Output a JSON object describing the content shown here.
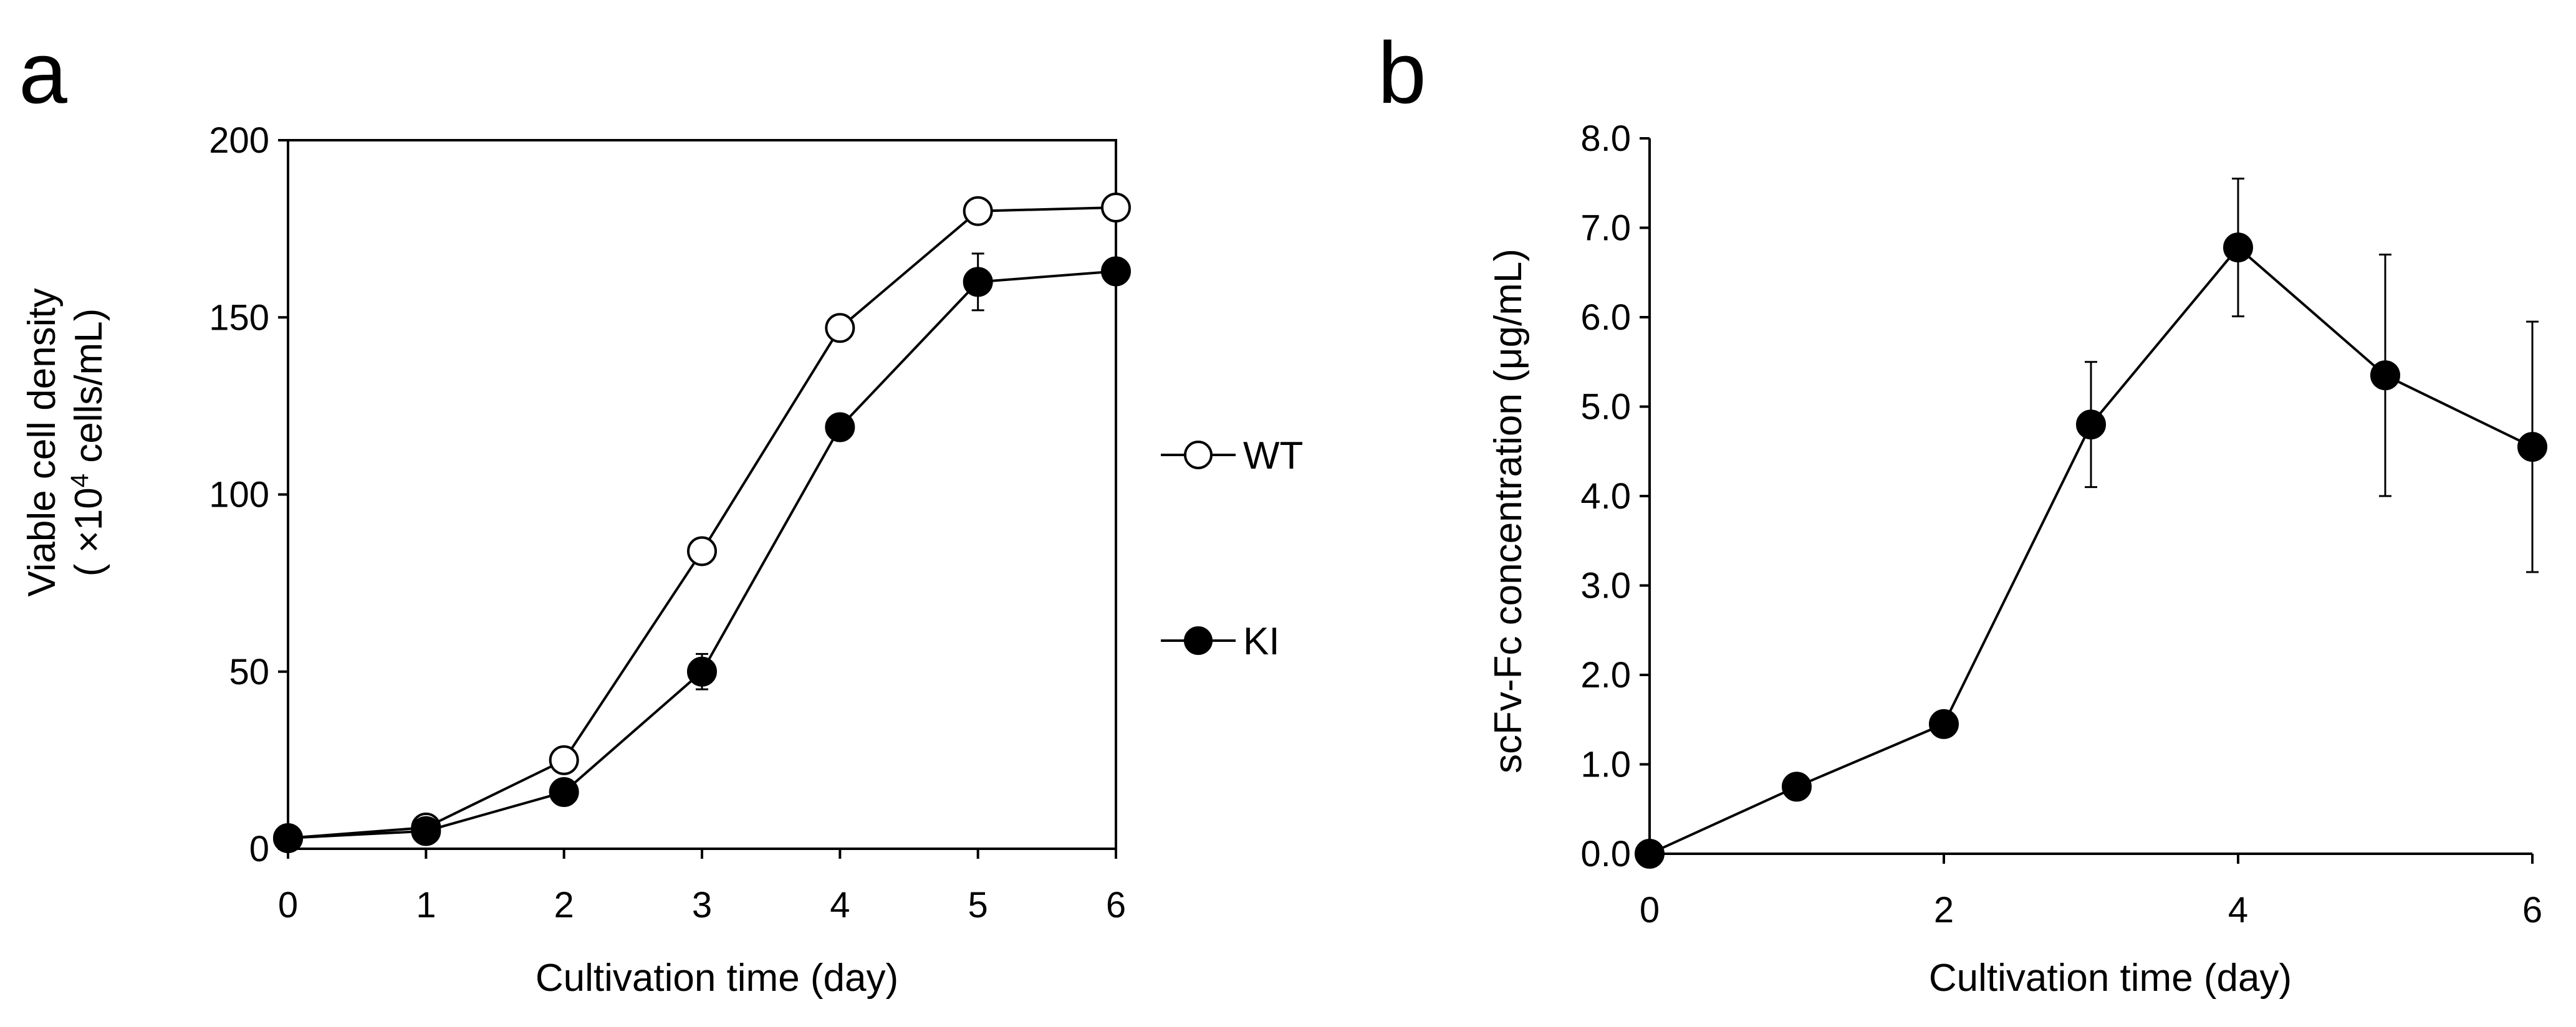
{
  "chart_data": [
    {
      "panel": "a",
      "type": "line",
      "xlabel": "Cultivation time (day)",
      "ylabel_line1": "Viable cell density",
      "ylabel_line2_prefix": "( ×10",
      "ylabel_line2_sup": "4",
      "ylabel_line2_suffix": " cells/mL)",
      "xlim": [
        0,
        6
      ],
      "ylim": [
        0,
        200
      ],
      "xticks": [
        0,
        1,
        2,
        3,
        4,
        5,
        6
      ],
      "yticks": [
        0,
        50,
        100,
        150,
        200
      ],
      "grid": false,
      "legend_position": "right",
      "series": [
        {
          "name": "WT",
          "marker": "open-circle",
          "x": [
            0,
            1,
            2,
            3,
            4,
            5,
            6
          ],
          "values": [
            3,
            6,
            25,
            84,
            147,
            180,
            181
          ],
          "errors": [
            0,
            0,
            0,
            0,
            0,
            0,
            0
          ]
        },
        {
          "name": "KI",
          "marker": "filled-circle",
          "x": [
            0,
            1,
            2,
            3,
            4,
            5,
            6
          ],
          "values": [
            3,
            5,
            16,
            50,
            119,
            160,
            163
          ],
          "errors": [
            0,
            0,
            0,
            5,
            0,
            8,
            0
          ]
        }
      ]
    },
    {
      "panel": "b",
      "type": "line",
      "xlabel": "Cultivation time (day)",
      "ylabel": "scFv-Fc concentration (μg/mL)",
      "xlim": [
        0,
        6
      ],
      "ylim": [
        0,
        8
      ],
      "xticks": [
        0,
        2,
        4,
        6
      ],
      "yticks": [
        "0.0",
        "1.0",
        "2.0",
        "3.0",
        "4.0",
        "5.0",
        "6.0",
        "7.0",
        "8.0"
      ],
      "grid": false,
      "series": [
        {
          "name": "scFv-Fc",
          "marker": "filled-circle",
          "x": [
            0,
            1,
            2,
            3,
            4,
            5,
            6
          ],
          "values": [
            0,
            0.75,
            1.45,
            4.8,
            6.78,
            5.35,
            4.55
          ],
          "errors": [
            0,
            0,
            0,
            0.7,
            0.77,
            1.35,
            1.4
          ]
        }
      ]
    }
  ]
}
